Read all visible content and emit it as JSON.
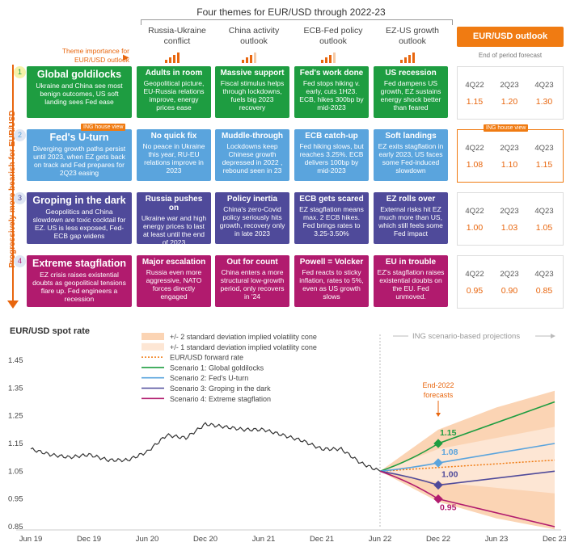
{
  "header": {
    "title": "Four themes for EUR/USD through 2022-23",
    "themes": [
      "Russia-Ukraine conflict",
      "China activity outlook",
      "ECB-Fed policy outlook",
      "EZ-US growth outlook"
    ],
    "theme_importance_label": "Theme importance for EUR/USD outlook",
    "theme_importance_levels": [
      4,
      3,
      3,
      4
    ]
  },
  "outlook": {
    "title": "EUR/USD outlook",
    "subtitle": "End of period forecast",
    "quarters": [
      "4Q22",
      "2Q23",
      "4Q23"
    ]
  },
  "sidebar_label": "Progressively more bearish for EUR/USD",
  "ing_house_view_tag": "ING house view",
  "scenarios": [
    {
      "num": "1",
      "title": "Global goldilocks",
      "desc": "Ukraine and China see most benign outcomes, US soft landing sees Fed ease",
      "color": "#1e9d41",
      "cells": [
        {
          "t": "Adults in room",
          "d": "Geopolitical picture, EU-Russia relations improve, energy prices ease"
        },
        {
          "t": "Massive support",
          "d": "Fiscal stimulus helps through lockdowns, fuels big 2023 recovery"
        },
        {
          "t": "Fed's work done",
          "d": "Fed stops hiking v. early, cuts 1H23. ECB, hikes 300bp by mid-2023"
        },
        {
          "t": "US recession",
          "d": "Fed dampens US growth, EZ sustains energy shock better than feared"
        }
      ],
      "forecast": [
        "1.15",
        "1.20",
        "1.30"
      ]
    },
    {
      "num": "2",
      "title": "Fed's U-turn",
      "desc": "Diverging growth paths persist until 2023, when EZ gets back on track and Fed prepares for 2Q23 easing",
      "color": "#5aa4dd",
      "cells": [
        {
          "t": "No quick fix",
          "d": "No peace in Ukraine this year, RU-EU relations improve in 2023"
        },
        {
          "t": "Muddle-through",
          "d": "Lockdowns keep Chinese growth depressed in 2022 , rebound seen in 23"
        },
        {
          "t": "ECB catch-up",
          "d": "Fed hiking slows, but reaches 3.25%. ECB delivers 100bp by mid-2023"
        },
        {
          "t": "Soft landings",
          "d": "EZ exits stagflation in early 2023, US faces some Fed-induced slowdown"
        }
      ],
      "forecast": [
        "1.08",
        "1.10",
        "1.15"
      ]
    },
    {
      "num": "3",
      "title": "Groping in the dark",
      "desc": "Geopolitics and China slowdown are toxic cocktail for EZ. US is less exposed, Fed-ECB gap widens",
      "color": "#4f4a9a",
      "cells": [
        {
          "t": "Russia pushes on",
          "d": "Ukraine war and high energy prices to last at least until the end of 2023"
        },
        {
          "t": "Policy inertia",
          "d": "China's zero-Covid policy seriously hits growth, recovery only in late 2023"
        },
        {
          "t": "ECB gets scared",
          "d": "EZ stagflation means max. 2 ECB hikes. Fed brings rates to 3.25-3.50%"
        },
        {
          "t": "EZ rolls over",
          "d": "External risks hit EZ much more than US, which still feels some Fed impact"
        }
      ],
      "forecast": [
        "1.00",
        "1.03",
        "1.05"
      ]
    },
    {
      "num": "4",
      "title": "Extreme stagflation",
      "desc": "EZ crisis raises existential doubts as geopolitical tensions flare up. Fed engineers a recession",
      "color": "#b11b6e",
      "cells": [
        {
          "t": "Major escalation",
          "d": "Russia even more aggressive, NATO forces directly engaged"
        },
        {
          "t": "Out for count",
          "d": "China enters a more structural low-growth period, only recovers in '24"
        },
        {
          "t": "Powell = Volcker",
          "d": "Fed reacts to sticky inflation, rates to 5%, even as US growth slows"
        },
        {
          "t": "EU in trouble",
          "d": "EZ's stagflation raises existential doubts on the EU. Fed unmoved."
        }
      ],
      "forecast": [
        "0.95",
        "0.90",
        "0.85"
      ]
    }
  ],
  "chart_data": {
    "type": "line",
    "title": "EUR/USD spot rate",
    "xlabel": "",
    "ylabel": "",
    "x_ticks": [
      "Jun 19",
      "Dec 19",
      "Jun 20",
      "Dec 20",
      "Jun 21",
      "Dec 21",
      "Jun 22",
      "Dec 22",
      "Jun 23",
      "Dec 23"
    ],
    "y_ticks": [
      "1.45",
      "1.35",
      "1.25",
      "1.15",
      "1.05",
      "0.95",
      "0.85"
    ],
    "ylim": [
      0.85,
      1.45
    ],
    "legend": [
      "+/- 2 standard deviation implied volatility cone",
      "+/- 1 standard deviation implied volatility cone",
      "EUR/USD forward rate",
      "Scenario 1: Global goldilocks",
      "Scenario 2: Fed's U-turn",
      "Scenario 3: Groping in the dark",
      "Scenario 4: Extreme stagflation"
    ],
    "projection_label": "ING scenario-based projections",
    "end2022_label": "End-2022 forecasts",
    "spot": {
      "x": [
        "Jun 19",
        "Aug 19",
        "Oct 19",
        "Dec 19",
        "Feb 20",
        "Apr 20",
        "Jun 20",
        "Aug 20",
        "Oct 20",
        "Dec 20",
        "Feb 21",
        "Apr 21",
        "Jun 21",
        "Aug 21",
        "Oct 21",
        "Dec 21",
        "Feb 22",
        "Apr 22",
        "Jun 22"
      ],
      "values": [
        1.13,
        1.11,
        1.1,
        1.11,
        1.09,
        1.09,
        1.12,
        1.18,
        1.17,
        1.22,
        1.21,
        1.2,
        1.2,
        1.18,
        1.16,
        1.13,
        1.13,
        1.08,
        1.05
      ]
    },
    "forward": {
      "x": [
        "Jun 22",
        "Dec 23"
      ],
      "values": [
        1.05,
        1.09
      ]
    },
    "cone_2sd": {
      "x": [
        "Jun 22",
        "Dec 22",
        "Jun 23",
        "Dec 23"
      ],
      "upper": [
        1.05,
        1.2,
        1.28,
        1.34
      ],
      "lower": [
        1.05,
        0.94,
        0.88,
        0.84
      ]
    },
    "cone_1sd": {
      "x": [
        "Jun 22",
        "Dec 22",
        "Jun 23",
        "Dec 23"
      ],
      "upper": [
        1.05,
        1.13,
        1.17,
        1.21
      ],
      "lower": [
        1.05,
        1.01,
        0.99,
        0.97
      ]
    },
    "series": [
      {
        "name": "Scenario 1: Global goldilocks",
        "color": "#1e9d41",
        "x": [
          "Jun 22",
          "Dec 22",
          "Dec 23"
        ],
        "values": [
          1.05,
          1.15,
          1.3
        ]
      },
      {
        "name": "Scenario 2: Fed's U-turn",
        "color": "#5aa4dd",
        "x": [
          "Jun 22",
          "Dec 22",
          "Dec 23"
        ],
        "values": [
          1.05,
          1.08,
          1.15
        ]
      },
      {
        "name": "Scenario 3: Groping in the dark",
        "color": "#4f4a9a",
        "x": [
          "Jun 22",
          "Dec 22",
          "Dec 23"
        ],
        "values": [
          1.05,
          1.0,
          1.05
        ]
      },
      {
        "name": "Scenario 4: Extreme stagflation",
        "color": "#b11b6e",
        "x": [
          "Jun 22",
          "Dec 22",
          "Dec 23"
        ],
        "values": [
          1.05,
          0.95,
          0.85
        ]
      }
    ],
    "markers": [
      {
        "label": "1.15",
        "x": "Dec 22",
        "value": 1.15,
        "color": "#1e9d41"
      },
      {
        "label": "1.08",
        "x": "Dec 22",
        "value": 1.08,
        "color": "#5aa4dd"
      },
      {
        "label": "1.00",
        "x": "Dec 22",
        "value": 1.0,
        "color": "#4f4a9a"
      },
      {
        "label": "0.95",
        "x": "Dec 22",
        "value": 0.95,
        "color": "#b11b6e"
      }
    ],
    "colors": {
      "cone_2sd": "#fbd4b4",
      "cone_1sd": "#fde6d4",
      "forward": "#f07b12",
      "spot": "#333333"
    }
  }
}
